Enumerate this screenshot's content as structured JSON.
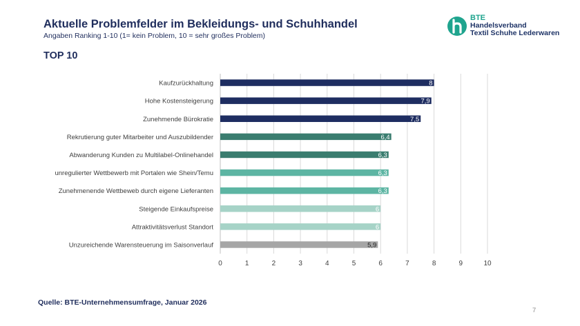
{
  "header": {
    "title": "Aktuelle Problemfelder im Bekleidungs- und Schuhhandel",
    "subtitle": "Angaben Ranking 1-10 (1= kein Problem, 10 = sehr großes Problem)",
    "top_label": "TOP 10"
  },
  "logo": {
    "brand": "BTE",
    "line1": "Handelsverband",
    "line2": "Textil  Schuhe  Lederwaren",
    "mark_color": "#1fa48e"
  },
  "footer": {
    "source": "Quelle: BTE-Unternehmensumfrage, Januar 2026",
    "page_number": "7"
  },
  "chart_data": {
    "type": "bar",
    "orientation": "horizontal",
    "categories": [
      "Kaufzurückhaltung",
      "Hohe Kostensteigerung",
      "Zunehmende Bürokratie",
      "Rekrutierung guter Mitarbeiter und Auszubildender",
      "Abwanderung Kunden zu Multilabel-Onlinehandel",
      "unregulierter Wettbewerb mit Portalen wie Shein/Temu",
      "Zunehmenende Wettbeweb durch eigene Lieferanten",
      "Steigende Einkaufspreise",
      "Attraktivitätsverlust Standort",
      "Unzureichende Warensteuerung im Saisonverlauf"
    ],
    "values": [
      8,
      7.9,
      7.5,
      6.4,
      6.3,
      6.3,
      6.3,
      6,
      6,
      5.9
    ],
    "value_labels": [
      "8",
      "7,9",
      "7,5",
      "6,4",
      "6,3",
      "6,3",
      "6,3",
      "6",
      "6",
      "5,9"
    ],
    "colors": [
      "#1e2d61",
      "#1e2d61",
      "#1e2d61",
      "#3a7d6f",
      "#3a7d6f",
      "#5db5a3",
      "#5db5a3",
      "#a6d3c7",
      "#a6d3c7",
      "#a6a6a6"
    ],
    "label_colors": [
      "#ffffff",
      "#ffffff",
      "#ffffff",
      "#ffffff",
      "#ffffff",
      "#ffffff",
      "#ffffff",
      "#ffffff",
      "#ffffff",
      "#262626"
    ],
    "xlim": [
      0,
      10
    ],
    "xticks": [
      "0",
      "1",
      "2",
      "3",
      "4",
      "5",
      "6",
      "7",
      "8",
      "9",
      "10"
    ],
    "grid": true,
    "legend": false
  }
}
